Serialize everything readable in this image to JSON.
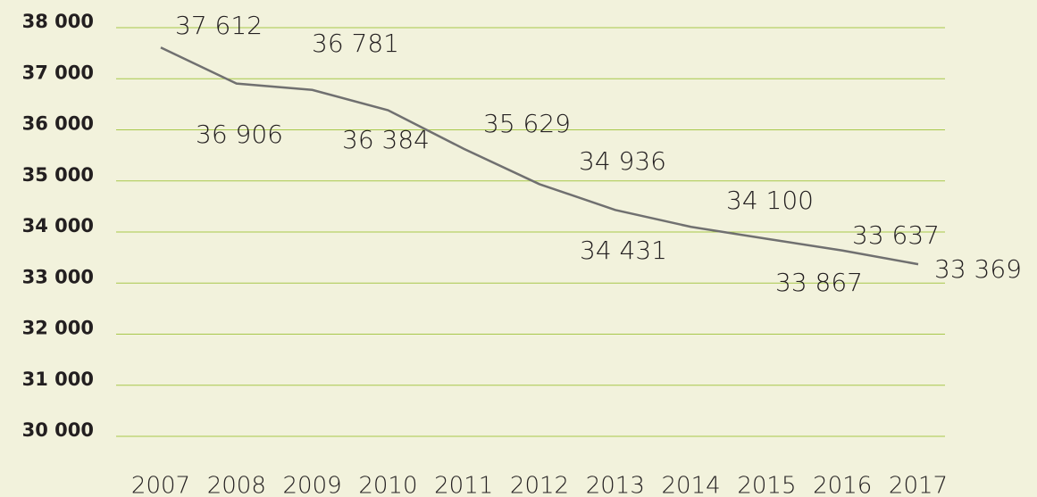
{
  "chart_data": {
    "type": "line",
    "categories": [
      "2007",
      "2008",
      "2009",
      "2010",
      "2011",
      "2012",
      "2013",
      "2014",
      "2015",
      "2016",
      "2017"
    ],
    "series": [
      {
        "color": "#707070",
        "values": [
          37612,
          36906,
          36781,
          36384,
          35629,
          34936,
          34431,
          34100,
          33867,
          33637,
          33369
        ],
        "value_labels": [
          "37 612",
          "36 906",
          "36 781",
          "36 384",
          "35 629",
          "34 936",
          "34 431",
          "34 100",
          "33 867",
          "33 637",
          "33 369"
        ]
      }
    ],
    "ylim": [
      30000,
      38000
    ],
    "yticks": [
      {
        "value": 30000,
        "label": "30 000"
      },
      {
        "value": 31000,
        "label": "31 000"
      },
      {
        "value": 32000,
        "label": "32 000"
      },
      {
        "value": 33000,
        "label": "33 000"
      },
      {
        "value": 34000,
        "label": "34 000"
      },
      {
        "value": 35000,
        "label": "35 000"
      },
      {
        "value": 36000,
        "label": "36 000"
      },
      {
        "value": 37000,
        "label": "37 000"
      },
      {
        "value": 38000,
        "label": "38 000"
      }
    ],
    "grid": true,
    "grid_color": "#a8c84a"
  }
}
